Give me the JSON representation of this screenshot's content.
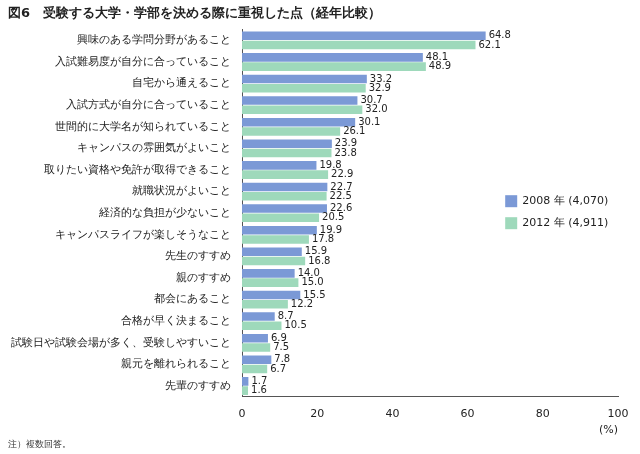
{
  "chart_data": {
    "type": "bar",
    "title": "図6　受験する大学・学部を決める際に重視した点（経年比較）",
    "note": "注）複数回答。",
    "x_label": "(%)",
    "orientation": "horizontal",
    "grid": false,
    "legend": "right",
    "data_labels": true,
    "categories": [
      "興味のある学問分野があること",
      "入試難易度が自分に合っていること",
      "自宅から通えること",
      "入試方式が自分に合っていること",
      "世間的に大学名が知られていること",
      "キャンパスの雰囲気がよいこと",
      "取りたい資格や免許が取得できること",
      "就職状況がよいこと",
      "経済的な負担が少ないこと",
      "キャンパスライフが楽しそうなこと",
      "先生のすすめ",
      "親のすすめ",
      "都会にあること",
      "合格が早く決まること",
      "試験日や試験会場が多く、受験しやすいこと",
      "親元を離れられること",
      "先輩のすすめ"
    ],
    "series": [
      {
        "name": "2008 年 (4,070)",
        "color": "#7b99d6",
        "values": [
          64.8,
          48.1,
          33.2,
          30.7,
          30.1,
          23.9,
          19.8,
          22.7,
          22.6,
          19.9,
          15.9,
          14.0,
          15.5,
          8.7,
          6.9,
          7.8,
          1.7
        ],
        "value_labels": [
          "64.8",
          "48.1",
          "33.2",
          "30.7",
          "30.1",
          "23.9",
          "19.8",
          "22.7",
          "22.6",
          "19.9",
          "15.9",
          "14.0",
          "15.5",
          "8.7",
          "6.9",
          "7.8",
          "1.7"
        ]
      },
      {
        "name": "2012 年 (4,911)",
        "color": "#9ed9bb",
        "values": [
          62.1,
          48.9,
          32.9,
          32.0,
          26.1,
          23.8,
          22.9,
          22.5,
          20.5,
          17.8,
          16.8,
          15.0,
          12.2,
          10.5,
          7.5,
          6.7,
          1.6
        ],
        "value_labels": [
          "62.1",
          "48.9",
          "32.9",
          "32.0",
          "26.1",
          "23.8",
          "22.9",
          "22.5",
          "20.5",
          "17.8",
          "16.8",
          "15.0",
          "12.2",
          "10.5",
          "7.5",
          "6.7",
          "1.6"
        ]
      }
    ],
    "xlim": [
      0,
      100
    ],
    "xticks": [
      0,
      20,
      40,
      60,
      80,
      100
    ]
  }
}
